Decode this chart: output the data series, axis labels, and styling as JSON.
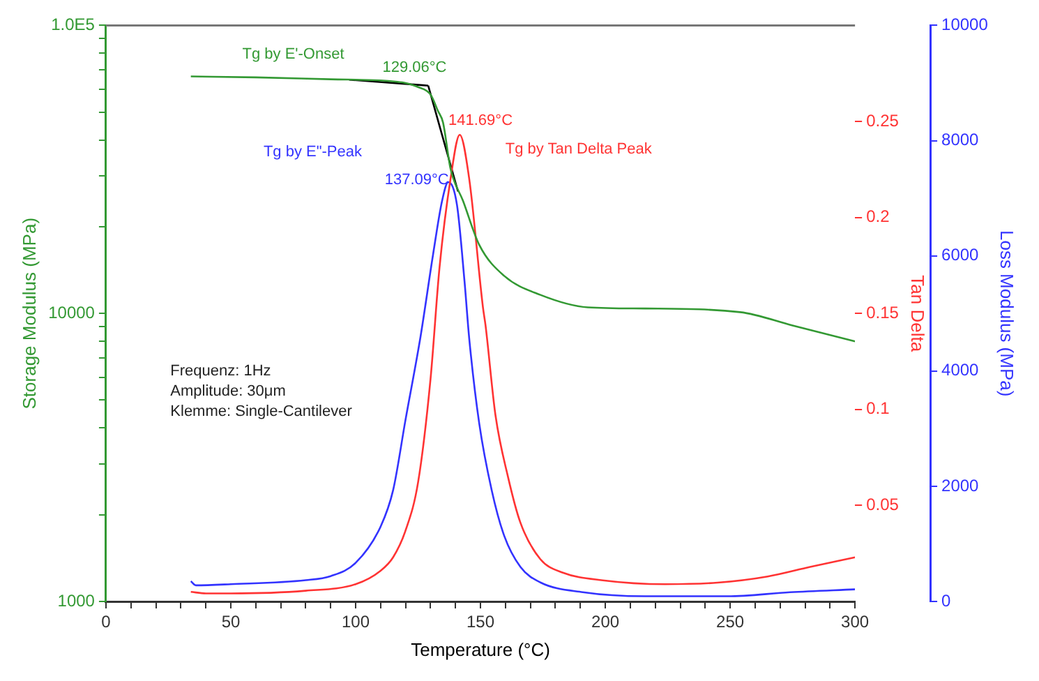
{
  "chart_data": {
    "type": "line",
    "xlabel": "Temperature (°C)",
    "ylabel": "Storage Modulus (MPa)",
    "y2label": "Tan Delta",
    "y3label": "Loss Modulus (MPa)",
    "log": "y",
    "marker": "none",
    "line_style": "solid",
    "grid": false,
    "xlim": [
      0,
      300
    ],
    "xticks": [
      0,
      {
        "value": 10,
        "label": null
      },
      {
        "value": 20,
        "label": null
      },
      {
        "value": 30,
        "label": null
      },
      {
        "value": 40,
        "label": null
      },
      50,
      {
        "value": 60,
        "label": null
      },
      {
        "value": 70,
        "label": null
      },
      {
        "value": 80,
        "label": null
      },
      {
        "value": 90,
        "label": null
      },
      100,
      {
        "value": 110,
        "label": null
      },
      {
        "value": 120,
        "label": null
      },
      {
        "value": 130,
        "label": null
      },
      {
        "value": 140,
        "label": null
      },
      150,
      {
        "value": 160,
        "label": null
      },
      {
        "value": 170,
        "label": null
      },
      {
        "value": 180,
        "label": null
      },
      {
        "value": 190,
        "label": null
      },
      200,
      {
        "value": 210,
        "label": null
      },
      {
        "value": 220,
        "label": null
      },
      {
        "value": 230,
        "label": null
      },
      {
        "value": 240,
        "label": null
      },
      250,
      {
        "value": 260,
        "label": null
      },
      {
        "value": 270,
        "label": null
      },
      {
        "value": 280,
        "label": null
      },
      {
        "value": 290,
        "label": null
      },
      300
    ],
    "ylim": [
      1000,
      100000
    ],
    "yticks": [
      1000,
      {
        "value": 2000,
        "label": null
      },
      {
        "value": 3000,
        "label": null
      },
      {
        "value": 4000,
        "label": null
      },
      {
        "value": 5000,
        "label": null
      },
      {
        "value": 6000,
        "label": null
      },
      {
        "value": 7000,
        "label": null
      },
      {
        "value": 8000,
        "label": null
      },
      {
        "value": 9000,
        "label": null
      },
      10000,
      {
        "value": 20000,
        "label": null
      },
      {
        "value": 30000,
        "label": null
      },
      {
        "value": 40000,
        "label": null
      },
      {
        "value": 50000,
        "label": null
      },
      {
        "value": 60000,
        "label": null
      },
      {
        "value": 70000,
        "label": null
      },
      {
        "value": 80000,
        "label": null
      },
      {
        "value": 90000,
        "label": null
      },
      {
        "value": 100000,
        "label": "1.0E5"
      }
    ],
    "y2lim": [
      0,
      0.3
    ],
    "y2ticks": [
      0.05,
      0.1,
      0.15,
      0.2,
      0.25
    ],
    "y3lim": [
      0,
      10000
    ],
    "y3ticks": [
      0,
      2000,
      4000,
      6000,
      8000,
      10000
    ],
    "series": [
      {
        "axis": "y",
        "color": "#339933",
        "x": [
          34,
          60,
          90,
          110,
          116,
          120,
          125,
          130,
          133,
          135,
          138,
          143,
          149.5,
          159.5,
          174,
          193,
          216,
          254,
          275,
          300
        ],
        "values": [
          66500,
          66000,
          65000,
          64400,
          63800,
          63100,
          61100,
          57500,
          50400,
          46000,
          31800,
          24600,
          17300,
          13500,
          11600,
          10500,
          10400,
          10100,
          9080,
          8000
        ]
      },
      {
        "axis": "y2",
        "color": "#ff3333",
        "x": [
          34,
          40,
          50,
          80,
          100,
          110,
          115,
          120,
          125,
          130,
          133.6,
          138,
          141.69,
          145.5,
          151,
          152,
          156,
          161,
          166,
          174,
          183,
          199,
          224,
          245,
          265,
          282,
          300
        ],
        "values": [
          0.005,
          0.0042,
          0.0042,
          0.0056,
          0.009,
          0.016,
          0.023,
          0.037,
          0.062,
          0.116,
          0.174,
          0.22,
          0.243,
          0.22,
          0.153,
          0.144,
          0.097,
          0.065,
          0.041,
          0.022,
          0.015,
          0.011,
          0.009,
          0.0098,
          0.013,
          0.018,
          0.023
        ]
      },
      {
        "axis": "y3",
        "color": "#3333ff",
        "x": [
          34,
          36,
          50,
          80,
          90,
          100,
          110,
          115,
          120,
          126,
          131,
          134.6,
          137.09,
          140.6,
          143.6,
          145.5,
          149.5,
          154.5,
          159.5,
          166,
          174,
          191,
          216,
          249,
          274,
          300
        ],
        "values": [
          350,
          280,
          300,
          370,
          440,
          670,
          1300,
          1930,
          3160,
          4600,
          6020,
          6950,
          7280,
          6880,
          5560,
          4560,
          3090,
          1930,
          1140,
          600,
          330,
          160,
          90,
          90,
          160,
          210
        ]
      },
      {
        "axis": "y",
        "color": "#000000",
        "x": [
          97.4,
          129.06
        ],
        "values": [
          64800,
          61800
        ]
      },
      {
        "axis": "y",
        "color": "#000000",
        "x": [
          129.06,
          141
        ],
        "values": [
          61800,
          26500
        ]
      }
    ],
    "annotations": [
      "Tg by E'-Onset",
      "129.06°C",
      "Tg by E\"-Peak",
      "137.09°C",
      "141.69°C",
      "Tg by Tan Delta Peak",
      "Frequenz: 1Hz",
      "Amplitude: 30μm",
      "Klemme: Single-Cantilever"
    ]
  }
}
